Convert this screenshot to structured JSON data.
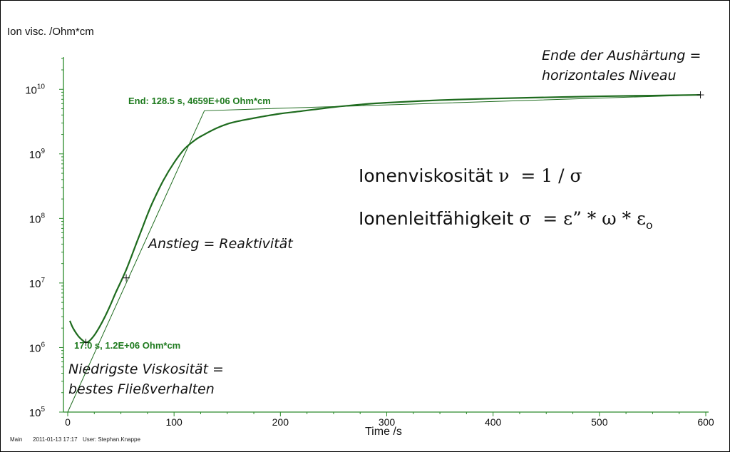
{
  "chart_data": {
    "type": "line",
    "xlabel": "Time /s",
    "ylabel": "Ion visc. /Ohm*cm",
    "xlim": [
      0,
      600
    ],
    "xticks": [
      "0",
      "100",
      "200",
      "300",
      "400",
      "500",
      "600"
    ],
    "ylim_log10": [
      5,
      10.5
    ],
    "yscale": "log",
    "yticks": [
      {
        "base": "10",
        "exp": "5",
        "log": 5
      },
      {
        "base": "10",
        "exp": "6",
        "log": 6
      },
      {
        "base": "10",
        "exp": "7",
        "log": 7
      },
      {
        "base": "10",
        "exp": "8",
        "log": 8
      },
      {
        "base": "10",
        "exp": "9",
        "log": 9
      },
      {
        "base": "10",
        "exp": "10",
        "log": 10
      }
    ],
    "series": [
      {
        "color": "#1e6b1e",
        "x": [
          2,
          5,
          10,
          15,
          17,
          20,
          25,
          30,
          35,
          40,
          45,
          50,
          55,
          60,
          65,
          70,
          75,
          80,
          90,
          100,
          110,
          120,
          128.5,
          140,
          150,
          160,
          170,
          180,
          200,
          220,
          250,
          280,
          300,
          350,
          400,
          450,
          500,
          550,
          595
        ],
        "y": [
          2600000.0,
          2000000.0,
          1500000.0,
          1250000.0,
          1200000.0,
          1250000.0,
          1550000.0,
          2100000.0,
          3000000.0,
          4500000.0,
          7000000.0,
          10500000.0,
          16000000.0,
          26000000.0,
          43000000.0,
          70000000.0,
          115000000.0,
          180000000.0,
          390000000.0,
          730000000.0,
          1200000000.0,
          1650000000.0,
          2000000000.0,
          2500000000.0,
          2900000000.0,
          3200000000.0,
          3450000000.0,
          3700000000.0,
          4200000000.0,
          4600000000.0,
          5300000000.0,
          5900000000.0,
          6200000000.0,
          6800000000.0,
          7200000000.0,
          7500000000.0,
          7800000000.0,
          8000000000.0,
          8200000000.0
        ]
      }
    ],
    "tangent_line": {
      "x": [
        0,
        128.5,
        595
      ],
      "y": [
        100000.0,
        4659000000.0,
        8200000000.0
      ]
    },
    "markers": [
      {
        "x": 17,
        "y": 1200000.0
      },
      {
        "x": 55,
        "y": 12000000.0
      },
      {
        "x": 595,
        "y": 8200000000.0
      }
    ],
    "annotations": {
      "end_value": "End: 128.5 s, 4659E+06 Ohm*cm",
      "min_value": "17.0 s, 1.2E+06 Ohm*cm",
      "end_cure_line1": "Ende der Aushärtung =",
      "end_cure_line2": "horizontales Niveau",
      "slope": "Anstieg = Reaktivität",
      "lowest_line1": "Niedrigste Viskosität =",
      "lowest_line2": "bestes Fließverhalten"
    },
    "formulas": {
      "line1_text": "Ionenviskosität",
      "line1_symbol": "ν",
      "line1_rest": "  = 1 / σ",
      "line2_text": "Ionenleitfähigkeit",
      "line2_symbol": "σ",
      "line2_rest": "  = ε” * ω * ε",
      "line2_sub": "o"
    },
    "grid": false,
    "legend": "none"
  },
  "footer": {
    "main": "Main",
    "datetime": "2011-01-13 17:17",
    "user": "User: Stephan.Knappe"
  },
  "colors": {
    "curve": "#1e6b1e",
    "axis": "#2a8a2a",
    "label_green": "#1e7a1e"
  }
}
